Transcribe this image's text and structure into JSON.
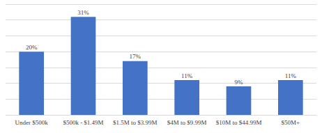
{
  "chart_data": {
    "type": "bar",
    "categories": [
      "Under $500k",
      "$500k - $1.49M",
      "$1.5M to $3.99M",
      "$4M to $9.99M",
      "$10M to $44.99M",
      "$50M+"
    ],
    "values": [
      20,
      31,
      17,
      11,
      9,
      11
    ],
    "value_labels": [
      "20%",
      "31%",
      "17%",
      "11%",
      "9%",
      "11%"
    ],
    "color": "#4472c4",
    "ylim": [
      0,
      35
    ],
    "yticks": [
      0,
      5,
      10,
      15,
      20,
      25,
      30,
      35
    ],
    "grid": true,
    "data_labels": true,
    "tick_labels": "x"
  }
}
